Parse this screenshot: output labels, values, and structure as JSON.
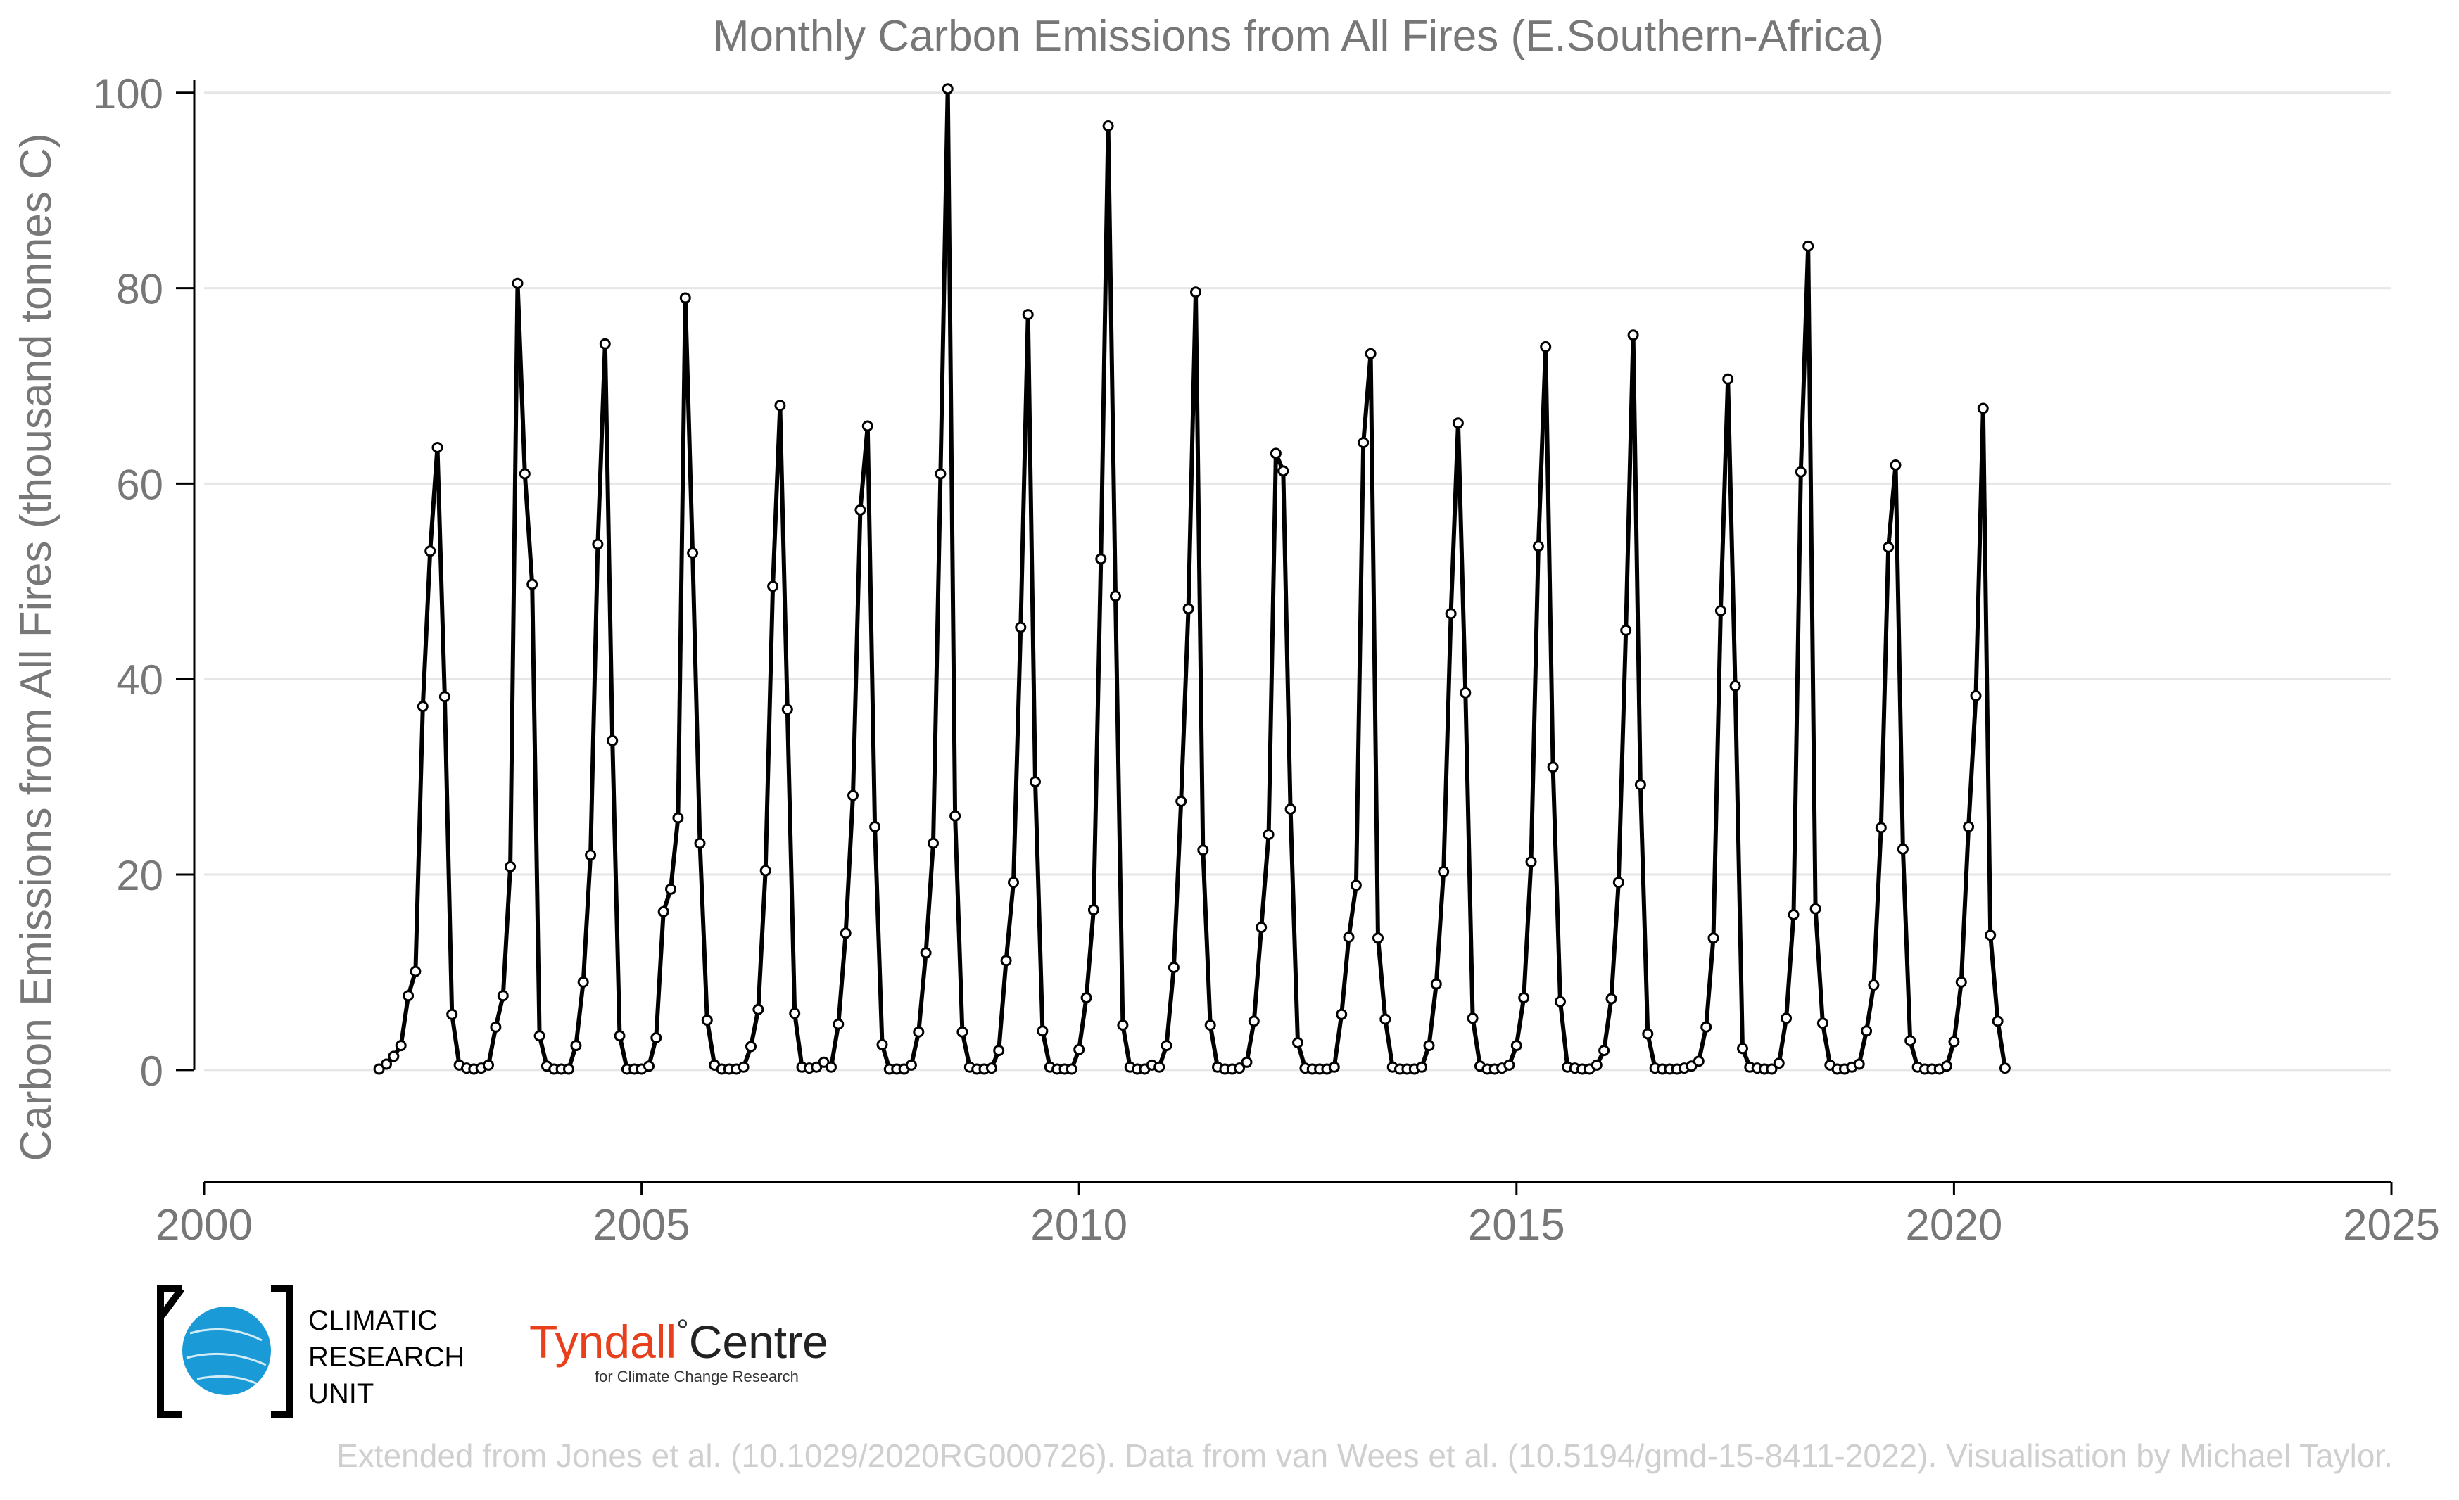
{
  "chart_data": {
    "type": "line",
    "title": "Monthly Carbon Emissions from All Fires (E.Southern-Africa)",
    "xlabel": "",
    "ylabel": "Carbon Emissions from All Fires (thousand tonnes C)",
    "xlim": [
      2000,
      2025
    ],
    "ylim": [
      -8,
      102
    ],
    "x_ticks": [
      2000,
      2005,
      2010,
      2015,
      2020,
      2025
    ],
    "y_ticks": [
      0,
      20,
      40,
      60,
      80,
      100
    ],
    "grid": "horizontal",
    "legend": "none",
    "series": [
      {
        "x_start": "2002-01",
        "x_step": "1 month",
        "values": [
          0.1,
          0.6,
          1.4,
          2.5,
          7.6,
          10.1,
          37.2,
          53.1,
          63.7,
          38.2,
          5.7,
          0.5,
          0.2,
          0.1,
          0.2,
          0.5,
          4.4,
          7.6,
          20.8,
          80.5,
          61.0,
          49.7,
          3.5,
          0.4,
          0.1,
          0.1,
          0.1,
          2.5,
          9.0,
          22.0,
          53.8,
          74.3,
          33.7,
          3.5,
          0.1,
          0.1,
          0.1,
          0.4,
          3.3,
          16.2,
          18.5,
          25.8,
          79.0,
          52.9,
          23.2,
          5.1,
          0.5,
          0.1,
          0.1,
          0.1,
          0.3,
          2.4,
          6.2,
          20.4,
          49.5,
          68.0,
          36.9,
          5.8,
          0.3,
          0.2,
          0.3,
          0.8,
          0.3,
          4.7,
          14.0,
          28.1,
          57.3,
          65.9,
          24.9,
          2.6,
          0.1,
          0.1,
          0.1,
          0.5,
          3.9,
          12.0,
          23.2,
          61.0,
          100.4,
          26.0,
          3.9,
          0.3,
          0.1,
          0.1,
          0.2,
          2.0,
          11.2,
          19.2,
          45.3,
          77.3,
          29.5,
          4.0,
          0.3,
          0.1,
          0.1,
          0.1,
          2.1,
          7.4,
          16.4,
          52.3,
          96.6,
          48.5,
          4.6,
          0.3,
          0.1,
          0.1,
          0.5,
          0.3,
          2.5,
          10.5,
          27.5,
          47.2,
          79.6,
          22.5,
          4.6,
          0.3,
          0.1,
          0.1,
          0.2,
          0.8,
          5.0,
          14.6,
          24.1,
          63.1,
          61.3,
          26.7,
          2.8,
          0.2,
          0.1,
          0.1,
          0.1,
          0.3,
          5.7,
          13.6,
          18.9,
          64.2,
          73.3,
          13.5,
          5.2,
          0.3,
          0.1,
          0.1,
          0.1,
          0.3,
          2.5,
          8.8,
          20.3,
          46.7,
          66.2,
          38.6,
          5.3,
          0.4,
          0.1,
          0.1,
          0.2,
          0.5,
          2.5,
          7.4,
          21.3,
          53.6,
          74.0,
          31.0,
          7.0,
          0.3,
          0.2,
          0.1,
          0.1,
          0.5,
          2.0,
          7.3,
          19.2,
          45.0,
          75.2,
          29.2,
          3.7,
          0.2,
          0.1,
          0.1,
          0.1,
          0.2,
          0.4,
          0.9,
          4.4,
          13.5,
          47.0,
          70.7,
          39.3,
          2.2,
          0.3,
          0.2,
          0.1,
          0.1,
          0.7,
          5.3,
          15.9,
          61.2,
          84.3,
          16.5,
          4.8,
          0.5,
          0.1,
          0.1,
          0.3,
          0.6,
          4.0,
          8.7,
          24.8,
          53.5,
          61.9,
          22.6,
          3.0,
          0.3,
          0.1,
          0.1,
          0.1,
          0.4,
          2.9,
          9.0,
          24.9,
          38.3,
          67.7,
          13.8,
          5.0,
          0.2
        ]
      }
    ]
  },
  "logos": {
    "cru_line1": "CLIMATIC",
    "cru_line2": "RESEARCH",
    "cru_line3": "UNIT",
    "tyndall_name": "Tyndall",
    "tyndall_degree": "°",
    "tyndall_centre": "Centre",
    "tyndall_sub": "for Climate Change Research"
  },
  "footer": {
    "credit": "Extended from Jones et al. (10.1029/2020RG000726). Data from van Wees et al. (10.5194/gmd-15-8411-2022). Visualisation by Michael Taylor."
  },
  "colors": {
    "line": "#000000",
    "marker_fill": "#ffffff",
    "text": "#777777",
    "grid": "#e6e6e6",
    "footer": "#cfcfcf",
    "cru_blue": "#1a9ad6",
    "tyndall_red": "#e8401c"
  }
}
